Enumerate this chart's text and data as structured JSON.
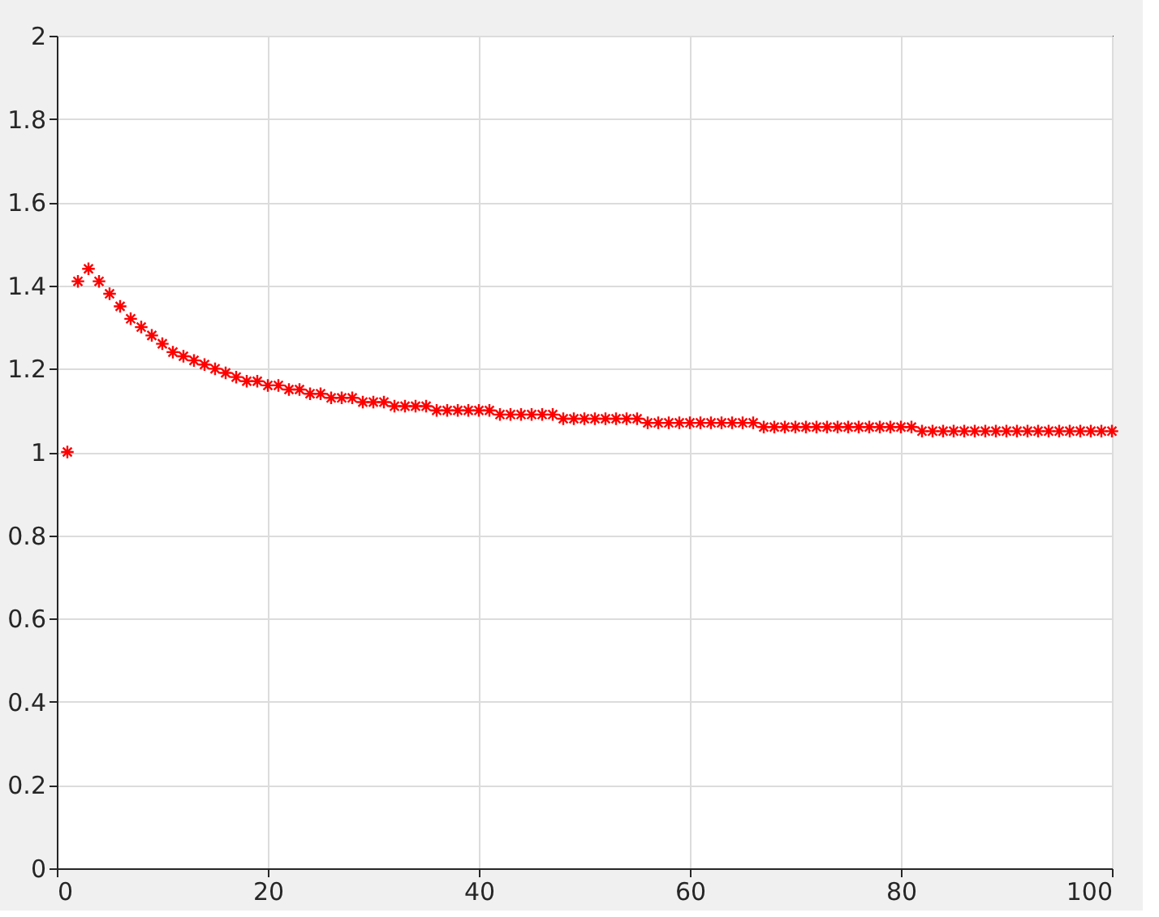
{
  "chart_data": {
    "type": "scatter",
    "x": [
      1,
      2,
      3,
      4,
      5,
      6,
      7,
      8,
      9,
      10,
      11,
      12,
      13,
      14,
      15,
      16,
      17,
      18,
      19,
      20,
      21,
      22,
      23,
      24,
      25,
      26,
      27,
      28,
      29,
      30,
      31,
      32,
      33,
      34,
      35,
      36,
      37,
      38,
      39,
      40,
      41,
      42,
      43,
      44,
      45,
      46,
      47,
      48,
      49,
      50,
      51,
      52,
      53,
      54,
      55,
      56,
      57,
      58,
      59,
      60,
      61,
      62,
      63,
      64,
      65,
      66,
      67,
      68,
      69,
      70,
      71,
      72,
      73,
      74,
      75,
      76,
      77,
      78,
      79,
      80,
      81,
      82,
      83,
      84,
      85,
      86,
      87,
      88,
      89,
      90,
      91,
      92,
      93,
      94,
      95,
      96,
      97,
      98,
      99,
      100
    ],
    "series": [
      {
        "color": "#ff0000",
        "values": [
          1.0,
          1.41,
          1.44,
          1.41,
          1.38,
          1.35,
          1.32,
          1.3,
          1.28,
          1.26,
          1.24,
          1.23,
          1.22,
          1.21,
          1.2,
          1.19,
          1.18,
          1.17,
          1.17,
          1.16,
          1.16,
          1.15,
          1.15,
          1.14,
          1.14,
          1.13,
          1.13,
          1.13,
          1.12,
          1.12,
          1.12,
          1.11,
          1.11,
          1.11,
          1.11,
          1.1,
          1.1,
          1.1,
          1.1,
          1.1,
          1.1,
          1.09,
          1.09,
          1.09,
          1.09,
          1.09,
          1.09,
          1.08,
          1.08,
          1.08,
          1.08,
          1.08,
          1.08,
          1.08,
          1.08,
          1.07,
          1.07,
          1.07,
          1.07,
          1.07,
          1.07,
          1.07,
          1.07,
          1.07,
          1.07,
          1.07,
          1.06,
          1.06,
          1.06,
          1.06,
          1.06,
          1.06,
          1.06,
          1.06,
          1.06,
          1.06,
          1.06,
          1.06,
          1.06,
          1.06,
          1.06,
          1.05,
          1.05,
          1.05,
          1.05,
          1.05,
          1.05,
          1.05,
          1.05,
          1.05,
          1.05,
          1.05,
          1.05,
          1.05,
          1.05,
          1.05,
          1.05,
          1.05,
          1.05,
          1.05
        ]
      }
    ],
    "xlim": [
      0,
      100
    ],
    "xticks": [
      0,
      20,
      40,
      60,
      80,
      100
    ],
    "ylim": [
      0,
      2
    ],
    "yticks": [
      0,
      0.2,
      0.4,
      0.6,
      0.8,
      1,
      1.2,
      1.4,
      1.6,
      1.8,
      2
    ],
    "grid": true,
    "marker": "cross",
    "legend": false
  }
}
